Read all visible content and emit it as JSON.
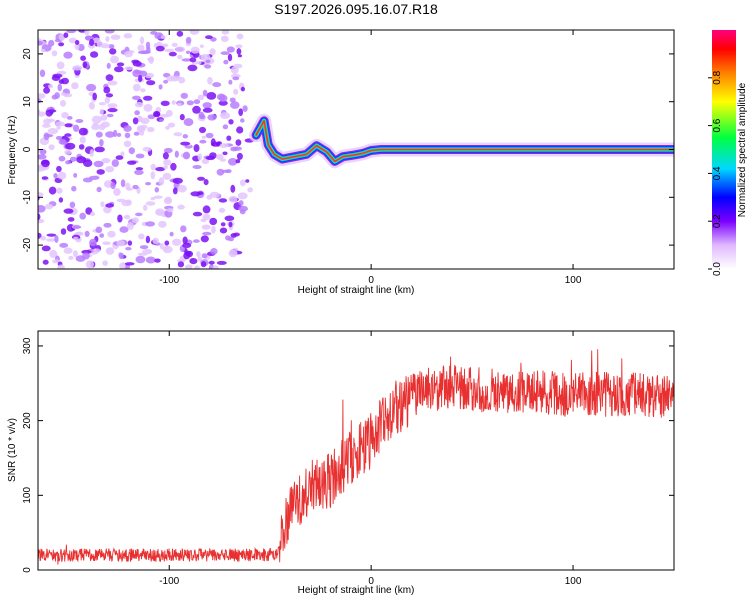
{
  "title": "S197.2026.095.16.07.R18",
  "chart_data": [
    {
      "type": "heatmap",
      "panel": "spectrogram",
      "xlabel": "Height of straight line (km)",
      "ylabel": "Frequency (Hz)",
      "xlim": [
        -165,
        150
      ],
      "ylim": [
        -25,
        25
      ],
      "xticks": [
        -100,
        0,
        100
      ],
      "yticks": [
        -20,
        -10,
        0,
        10,
        20
      ],
      "noise_region_x": [
        -165,
        -58
      ],
      "signal_track": [
        {
          "x": -57,
          "y": 3
        },
        {
          "x": -53,
          "y": 6
        },
        {
          "x": -51,
          "y": 1
        },
        {
          "x": -48,
          "y": -1
        },
        {
          "x": -44,
          "y": -2
        },
        {
          "x": -38,
          "y": -1.5
        },
        {
          "x": -32,
          "y": -1
        },
        {
          "x": -27,
          "y": 0.8
        },
        {
          "x": -22,
          "y": -0.5
        },
        {
          "x": -18,
          "y": -2.5
        },
        {
          "x": -14,
          "y": -1.5
        },
        {
          "x": -9,
          "y": -1.2
        },
        {
          "x": -4,
          "y": -0.8
        },
        {
          "x": 0,
          "y": -0.2
        },
        {
          "x": 5,
          "y": 0
        },
        {
          "x": 12,
          "y": 0
        },
        {
          "x": 20,
          "y": 0
        },
        {
          "x": 150,
          "y": 0
        }
      ],
      "colorbar": {
        "label": "Normalized spectral amplitude",
        "range": [
          0,
          1
        ],
        "ticks": [
          "0.0",
          "0.2",
          "0.4",
          "0.6",
          "0.8"
        ]
      }
    },
    {
      "type": "line",
      "panel": "snr",
      "xlabel": "Height of straight line (km)",
      "ylabel": "SNR (10 * v/v)",
      "xlim": [
        -165,
        150
      ],
      "ylim": [
        0,
        320
      ],
      "xticks": [
        -100,
        0,
        100
      ],
      "yticks": [
        0,
        100,
        200,
        300
      ],
      "color": "#e83030",
      "trend": [
        {
          "x": -165,
          "y": 20
        },
        {
          "x": -50,
          "y": 20
        },
        {
          "x": -46,
          "y": 25
        },
        {
          "x": -42,
          "y": 65
        },
        {
          "x": -36,
          "y": 90
        },
        {
          "x": -32,
          "y": 108
        },
        {
          "x": -27,
          "y": 112
        },
        {
          "x": -22,
          "y": 116
        },
        {
          "x": -18,
          "y": 125
        },
        {
          "x": -14,
          "y": 140
        },
        {
          "x": -10,
          "y": 150
        },
        {
          "x": -6,
          "y": 162
        },
        {
          "x": -2,
          "y": 168
        },
        {
          "x": 2,
          "y": 180
        },
        {
          "x": 8,
          "y": 205
        },
        {
          "x": 14,
          "y": 220
        },
        {
          "x": 20,
          "y": 232
        },
        {
          "x": 28,
          "y": 242
        },
        {
          "x": 40,
          "y": 245
        },
        {
          "x": 60,
          "y": 240
        },
        {
          "x": 80,
          "y": 238
        },
        {
          "x": 100,
          "y": 236
        },
        {
          "x": 120,
          "y": 235
        },
        {
          "x": 150,
          "y": 233
        }
      ]
    }
  ]
}
